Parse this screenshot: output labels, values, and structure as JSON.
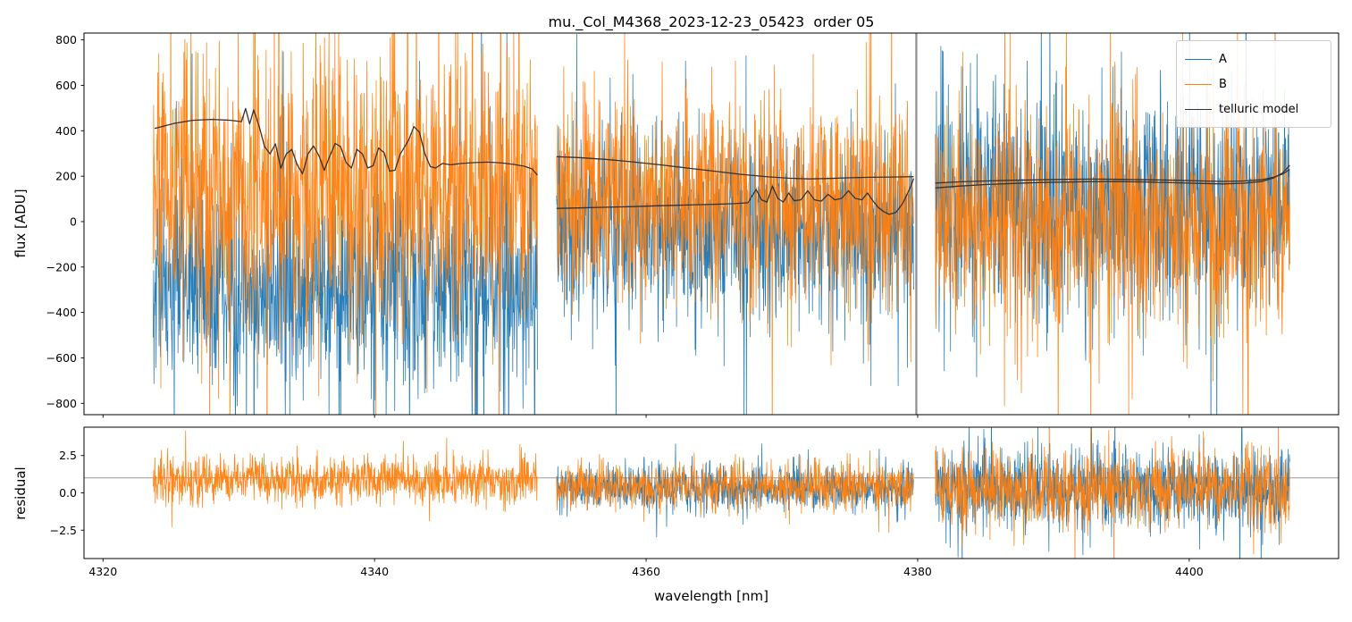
{
  "chart_data": {
    "type": "line",
    "title": "mu._Col_M4368_2023-12-23_05423  order 05",
    "xlabel": "wavelength [nm]",
    "legend": {
      "position": "upper right",
      "entries": [
        {
          "label": "A",
          "color": "#1f77b4"
        },
        {
          "label": "B",
          "color": "#ff7f0e"
        },
        {
          "label": "telluric model",
          "color": "#333333"
        }
      ]
    },
    "colors": {
      "A": "#1f77b4",
      "B": "#ff7f0e",
      "model": "#333333",
      "marker_line": "#808080",
      "reference_line": "#9a9a9a"
    },
    "panels": [
      {
        "id": "flux",
        "ylabel": "flux [ADU]",
        "xlim": [
          4318.6,
          4411.0
        ],
        "ylim": [
          -850,
          830
        ],
        "xticks": [
          4320,
          4340,
          4360,
          4380,
          4400
        ],
        "xtick_labels": [
          "4320",
          "4340",
          "4360",
          "4380",
          "4400"
        ],
        "show_xtick_labels": false,
        "yticks": [
          800,
          600,
          400,
          200,
          0,
          -200,
          -400,
          -600,
          -800
        ],
        "ytick_labels": [
          "800",
          "600",
          "400",
          "200",
          "0",
          "−200",
          "−400",
          "−600",
          "−800"
        ],
        "vlines": [
          {
            "x": 4379.9,
            "color": "#808080",
            "width": 2.2
          }
        ],
        "hlines": [],
        "noise_series": [
          {
            "name": "A",
            "color": "#1f77b4",
            "opacity": 0.95,
            "segments": [
              {
                "x0": 4323.7,
                "x1": 4352.0,
                "mean": -290,
                "sd": 230,
                "spike_prob": 0.06,
                "spike_mul": 2.3
              },
              {
                "x0": 4353.4,
                "x1": 4379.7,
                "mean": -30,
                "sd": 200,
                "spike_prob": 0.06,
                "spike_mul": 2.2
              },
              {
                "x0": 4381.3,
                "x1": 4407.4,
                "mean": 70,
                "sd": 230,
                "spike_prob": 0.06,
                "spike_mul": 2.3
              }
            ]
          },
          {
            "name": "B",
            "color": "#ff7f0e",
            "opacity": 0.95,
            "segments": [
              {
                "x0": 4323.7,
                "x1": 4352.0,
                "mean": 130,
                "sd": 290,
                "spike_prob": 0.07,
                "spike_mul": 2.3
              },
              {
                "x0": 4353.4,
                "x1": 4379.7,
                "mean": 90,
                "sd": 230,
                "spike_prob": 0.06,
                "spike_mul": 2.2
              },
              {
                "x0": 4381.3,
                "x1": 4407.4,
                "mean": 0,
                "sd": 240,
                "spike_prob": 0.06,
                "spike_mul": 2.3
              }
            ]
          }
        ],
        "model_series": {
          "name": "telluric model",
          "color": "#333333",
          "width": 1.3,
          "lines": [
            [
              [
                4323.8,
                410
              ],
              [
                4325.2,
                432
              ],
              [
                4326.6,
                446
              ],
              [
                4328,
                450
              ],
              [
                4329.4,
                446
              ],
              [
                4330.2,
                440
              ],
              [
                4330.5,
                498
              ],
              [
                4330.8,
                430
              ],
              [
                4331.1,
                492
              ],
              [
                4331.5,
                420
              ],
              [
                4331.9,
                330
              ],
              [
                4332.3,
                298
              ],
              [
                4332.7,
                342
              ],
              [
                4333.1,
                235
              ],
              [
                4333.5,
                298
              ],
              [
                4333.9,
                318
              ],
              [
                4334.3,
                250
              ],
              [
                4334.7,
                210
              ],
              [
                4335.1,
                298
              ],
              [
                4335.5,
                333
              ],
              [
                4335.9,
                290
              ],
              [
                4336.3,
                226
              ],
              [
                4336.7,
                288
              ],
              [
                4337.1,
                344
              ],
              [
                4337.5,
                330
              ],
              [
                4337.9,
                260
              ],
              [
                4338.3,
                236
              ],
              [
                4338.7,
                318
              ],
              [
                4339.1,
                298
              ],
              [
                4339.5,
                236
              ],
              [
                4339.9,
                246
              ],
              [
                4340.3,
                324
              ],
              [
                4340.7,
                304
              ],
              [
                4341.1,
                222
              ],
              [
                4341.5,
                226
              ],
              [
                4341.9,
                298
              ],
              [
                4342.5,
                358
              ],
              [
                4342.9,
                418
              ],
              [
                4343.3,
                394
              ],
              [
                4343.7,
                300
              ],
              [
                4344.1,
                242
              ],
              [
                4344.5,
                236
              ],
              [
                4345,
                256
              ],
              [
                4345.6,
                250
              ],
              [
                4346.4,
                256
              ],
              [
                4347.4,
                260
              ],
              [
                4348.4,
                262
              ],
              [
                4349.4,
                258
              ],
              [
                4350.2,
                252
              ],
              [
                4351,
                244
              ],
              [
                4351.6,
                232
              ],
              [
                4352,
                205
              ]
            ],
            [
              [
                4353.4,
                286
              ],
              [
                4355,
                282
              ],
              [
                4357,
                274
              ],
              [
                4359,
                263
              ],
              [
                4361,
                250
              ],
              [
                4363,
                236
              ],
              [
                4365,
                222
              ],
              [
                4367,
                208
              ],
              [
                4369,
                197
              ],
              [
                4370.5,
                191
              ],
              [
                4372,
                188
              ],
              [
                4373.5,
                190
              ],
              [
                4375,
                193
              ],
              [
                4376.5,
                195
              ],
              [
                4378,
                196
              ],
              [
                4379,
                197
              ],
              [
                4379.7,
                198
              ]
            ],
            [
              [
                4353.4,
                58
              ],
              [
                4355,
                60
              ],
              [
                4357,
                63
              ],
              [
                4359,
                66
              ],
              [
                4361,
                70
              ],
              [
                4363,
                73
              ],
              [
                4365,
                76
              ],
              [
                4366.5,
                79
              ],
              [
                4367.5,
                83
              ],
              [
                4368.1,
                142
              ],
              [
                4368.5,
                96
              ],
              [
                4368.9,
                86
              ],
              [
                4369.3,
                156
              ],
              [
                4369.7,
                102
              ],
              [
                4370.1,
                86
              ],
              [
                4370.5,
                126
              ],
              [
                4370.9,
                92
              ],
              [
                4371.4,
                96
              ],
              [
                4371.9,
                136
              ],
              [
                4372.4,
                96
              ],
              [
                4372.9,
                90
              ],
              [
                4373.4,
                120
              ],
              [
                4373.9,
                96
              ],
              [
                4374.4,
                102
              ],
              [
                4374.9,
                136
              ],
              [
                4375.4,
                102
              ],
              [
                4375.9,
                96
              ],
              [
                4376.3,
                126
              ],
              [
                4376.7,
                92
              ],
              [
                4377.1,
                62
              ],
              [
                4377.5,
                44
              ],
              [
                4377.9,
                32
              ],
              [
                4378.4,
                40
              ],
              [
                4378.9,
                80
              ],
              [
                4379.3,
                130
              ],
              [
                4379.6,
                172
              ],
              [
                4379.7,
                190
              ]
            ],
            [
              [
                4381.3,
                148
              ],
              [
                4383,
                156
              ],
              [
                4385,
                163
              ],
              [
                4387,
                168
              ],
              [
                4389,
                172
              ],
              [
                4391,
                174
              ],
              [
                4393,
                176
              ],
              [
                4395,
                176
              ],
              [
                4397,
                174
              ],
              [
                4399,
                171
              ],
              [
                4401,
                168
              ],
              [
                4402.5,
                166
              ],
              [
                4404,
                169
              ],
              [
                4405.3,
                176
              ],
              [
                4406.2,
                192
              ],
              [
                4406.9,
                215
              ],
              [
                4407.4,
                248
              ]
            ],
            [
              [
                4381.3,
                170
              ],
              [
                4383,
                175
              ],
              [
                4385,
                179
              ],
              [
                4387,
                182
              ],
              [
                4389,
                184
              ],
              [
                4391,
                186
              ],
              [
                4393,
                187
              ],
              [
                4395,
                186
              ],
              [
                4397,
                184
              ],
              [
                4399,
                182
              ],
              [
                4401,
                179
              ],
              [
                4402.5,
                177
              ],
              [
                4404,
                179
              ],
              [
                4405.3,
                184
              ],
              [
                4406.2,
                195
              ],
              [
                4406.9,
                210
              ],
              [
                4407.4,
                230
              ]
            ]
          ]
        }
      },
      {
        "id": "residual",
        "ylabel": "residual",
        "xlim": [
          4318.6,
          4411.0
        ],
        "ylim": [
          -4.4,
          4.4
        ],
        "xticks": [
          4320,
          4340,
          4360,
          4380,
          4400
        ],
        "xtick_labels": [
          "4320",
          "4340",
          "4360",
          "4380",
          "4400"
        ],
        "show_xtick_labels": true,
        "yticks": [
          2.5,
          0.0,
          -2.5
        ],
        "ytick_labels": [
          "2.5",
          "0.0",
          "−2.5"
        ],
        "vlines": [],
        "hlines": [
          {
            "y": 1.0,
            "color": "#9a9a9a",
            "width": 1
          }
        ],
        "noise_series": [
          {
            "name": "A",
            "color": "#1f77b4",
            "opacity": 0.95,
            "segments": [
              {
                "x0": 4323.7,
                "x1": 4352.0,
                "mean": 0,
                "sd": 0,
                "spike_prob": 0,
                "spike_mul": 1
              },
              {
                "x0": 4353.4,
                "x1": 4379.7,
                "mean": 0.35,
                "sd": 0.75,
                "spike_prob": 0.05,
                "spike_mul": 2.0
              },
              {
                "x0": 4381.3,
                "x1": 4407.4,
                "mean": 0.2,
                "sd": 1.4,
                "spike_prob": 0.05,
                "spike_mul": 1.8
              }
            ]
          },
          {
            "name": "B",
            "color": "#ff7f0e",
            "opacity": 0.95,
            "segments": [
              {
                "x0": 4323.7,
                "x1": 4352.0,
                "mean": 0.9,
                "sd": 0.8,
                "spike_prob": 0.05,
                "spike_mul": 1.8
              },
              {
                "x0": 4353.4,
                "x1": 4379.7,
                "mean": 0.45,
                "sd": 0.8,
                "spike_prob": 0.05,
                "spike_mul": 1.8
              },
              {
                "x0": 4381.3,
                "x1": 4407.4,
                "mean": 0.2,
                "sd": 1.25,
                "spike_prob": 0.05,
                "spike_mul": 1.8
              }
            ]
          }
        ]
      }
    ]
  }
}
